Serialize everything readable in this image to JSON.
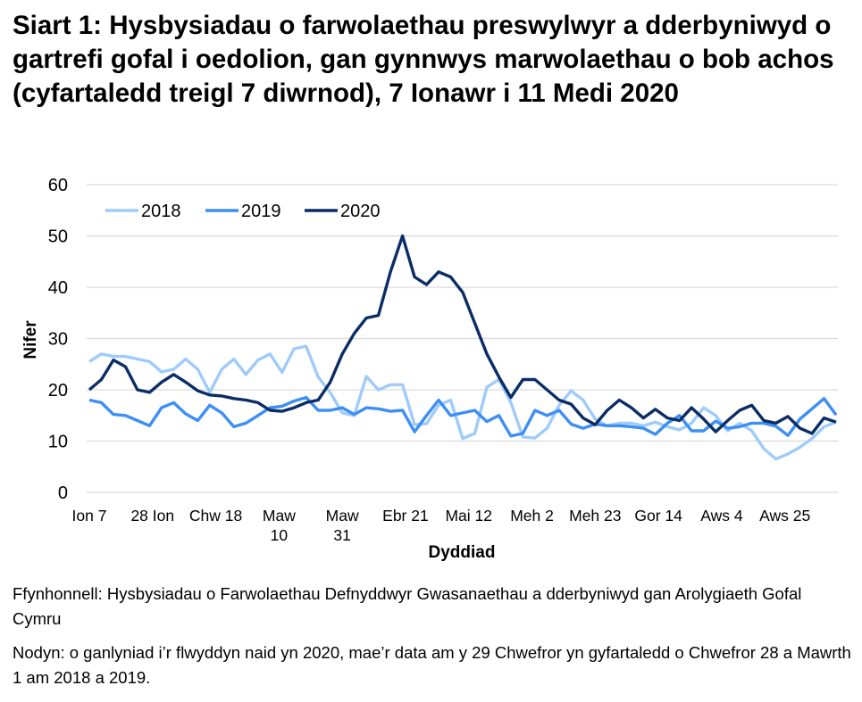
{
  "title": "Siart 1: Hysbysiadau o farwolaethau preswylwyr a dderbyniwyd o gartrefi gofal i oedolion, gan gynnwys marwolaethau o bob achos (cyfartaledd treigl 7 diwrnod), 7 Ionawr i 11 Medi 2020",
  "source": "Ffynhonnell: Hysbysiadau o Farwolaethau Defnyddwyr Gwasanaethau a dderbyniwyd gan Arolygiaeth Gofal Cymru",
  "note": "Nodyn: o ganlyniad i’r flwyddyn naid yn 2020, mae’r data am y 29 Chwefror yn gyfartaledd o Chwefror 28 a Mawrth 1 am 2018 a 2019.",
  "chart_data": {
    "type": "line",
    "xlabel": "Dyddiad",
    "ylabel": "Nifer",
    "ylim": [
      0,
      60
    ],
    "yticks": [
      0,
      10,
      20,
      30,
      40,
      50,
      60
    ],
    "grid": true,
    "legend_position": "top-left",
    "xticks": [
      {
        "date": "2020-01-07",
        "label": "Ion 7"
      },
      {
        "date": "2020-01-28",
        "label": "28 Ion"
      },
      {
        "date": "2020-02-18",
        "label": "Chw 18"
      },
      {
        "date": "2020-03-10",
        "label": "Maw 10"
      },
      {
        "date": "2020-03-31",
        "label": "Maw 31"
      },
      {
        "date": "2020-04-21",
        "label": "Ebr 21"
      },
      {
        "date": "2020-05-12",
        "label": "Mai 12"
      },
      {
        "date": "2020-06-02",
        "label": "Meh 2"
      },
      {
        "date": "2020-06-23",
        "label": "Meh 23"
      },
      {
        "date": "2020-07-14",
        "label": "Gor 14"
      },
      {
        "date": "2020-08-04",
        "label": "Aws 4"
      },
      {
        "date": "2020-08-25",
        "label": "Aws 25"
      }
    ],
    "xlim": [
      "2020-01-07",
      "2020-09-11"
    ],
    "x": [
      "2020-01-07",
      "2020-01-11",
      "2020-01-15",
      "2020-01-19",
      "2020-01-23",
      "2020-01-27",
      "2020-01-31",
      "2020-02-04",
      "2020-02-08",
      "2020-02-12",
      "2020-02-16",
      "2020-02-20",
      "2020-02-24",
      "2020-02-28",
      "2020-03-03",
      "2020-03-07",
      "2020-03-11",
      "2020-03-15",
      "2020-03-19",
      "2020-03-23",
      "2020-03-27",
      "2020-03-31",
      "2020-04-04",
      "2020-04-08",
      "2020-04-12",
      "2020-04-16",
      "2020-04-20",
      "2020-04-24",
      "2020-04-28",
      "2020-05-02",
      "2020-05-06",
      "2020-05-10",
      "2020-05-14",
      "2020-05-18",
      "2020-05-22",
      "2020-05-26",
      "2020-05-30",
      "2020-06-03",
      "2020-06-07",
      "2020-06-11",
      "2020-06-15",
      "2020-06-19",
      "2020-06-23",
      "2020-06-27",
      "2020-07-01",
      "2020-07-05",
      "2020-07-09",
      "2020-07-13",
      "2020-07-17",
      "2020-07-21",
      "2020-07-25",
      "2020-07-29",
      "2020-08-02",
      "2020-08-06",
      "2020-08-10",
      "2020-08-14",
      "2020-08-18",
      "2020-08-22",
      "2020-08-26",
      "2020-08-30",
      "2020-09-03",
      "2020-09-07",
      "2020-09-11"
    ],
    "series": [
      {
        "name": "2018",
        "color": "#9fcbfb",
        "values": [
          25.5,
          27,
          26.5,
          26.5,
          26,
          25.5,
          23.5,
          24,
          26,
          24,
          19.5,
          24,
          26,
          23,
          25.8,
          27,
          23.4,
          28,
          28.5,
          22.5,
          19.5,
          15.5,
          15,
          22.6,
          20,
          21,
          21,
          13.2,
          13.4,
          17,
          18,
          10.5,
          11.5,
          20.5,
          22,
          17.5,
          10.8,
          10.6,
          12.5,
          17,
          19.8,
          18,
          14.3,
          13,
          13.5,
          13.5,
          13,
          13.7,
          12.8,
          12.2,
          13.5,
          16.5,
          15,
          12,
          13.5,
          12,
          8.5,
          6.5,
          7.5,
          8.8,
          10.5,
          12.8,
          13.7
        ]
      },
      {
        "name": "2019",
        "color": "#3d8ef5",
        "values": [
          18,
          17.5,
          15.2,
          15,
          14,
          13,
          16.5,
          17.5,
          15.3,
          14,
          17,
          15.5,
          12.8,
          13.5,
          15,
          16.5,
          16.8,
          17.8,
          18.5,
          16,
          16,
          16.5,
          15.2,
          16.5,
          16.3,
          15.8,
          16,
          11.8,
          15,
          18,
          15,
          15.5,
          16,
          13.8,
          15,
          11,
          11.5,
          16,
          15,
          16,
          13.3,
          12.5,
          13.3,
          13,
          13,
          12.8,
          12.5,
          11.3,
          13.5,
          15,
          12,
          12,
          13.9,
          12.5,
          12.8,
          13.5,
          13.5,
          12.9,
          11.1,
          14.3,
          16.3,
          18.3,
          15.1
        ]
      },
      {
        "name": "2020",
        "color": "#0b2d66",
        "values": [
          20,
          22,
          25.8,
          24.5,
          20,
          19.5,
          21.5,
          23,
          21.5,
          19.8,
          19,
          18.8,
          18.3,
          18,
          17.5,
          16,
          15.8,
          16.5,
          17.5,
          18,
          21.5,
          27,
          31,
          34,
          34.5,
          43,
          50,
          42,
          40.5,
          43,
          42,
          39,
          33,
          27,
          22.5,
          18.5,
          22,
          22,
          20,
          18,
          17.2,
          14.5,
          13.2,
          16,
          18,
          16.5,
          14.5,
          16.2,
          14.5,
          14,
          16.5,
          14.3,
          11.8,
          14,
          16,
          17,
          14,
          13.5,
          14.8,
          12.5,
          11.5,
          14.5,
          13.7
        ]
      }
    ]
  }
}
